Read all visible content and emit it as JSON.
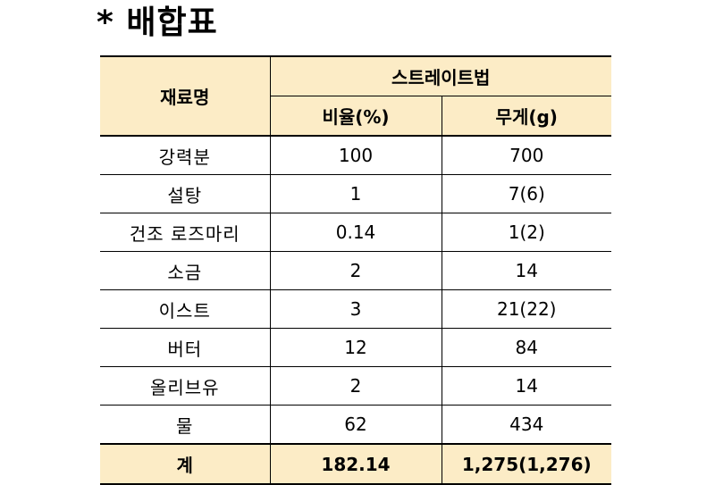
{
  "title": "* 배합표",
  "table": {
    "header": {
      "ingredient": "재료명",
      "method": "스트레이트법",
      "ratio": "비율(%)",
      "weight": "무게(g)"
    },
    "rows": [
      {
        "ingredient": "강력분",
        "ratio": "100",
        "weight": "700"
      },
      {
        "ingredient": "설탕",
        "ratio": "1",
        "weight": "7(6)"
      },
      {
        "ingredient": "건조 로즈마리",
        "ratio": "0.14",
        "weight": "1(2)"
      },
      {
        "ingredient": "소금",
        "ratio": "2",
        "weight": "14"
      },
      {
        "ingredient": "이스트",
        "ratio": "3",
        "weight": "21(22)"
      },
      {
        "ingredient": "버터",
        "ratio": "12",
        "weight": "84"
      },
      {
        "ingredient": "올리브유",
        "ratio": "2",
        "weight": "14"
      },
      {
        "ingredient": "물",
        "ratio": "62",
        "weight": "434"
      }
    ],
    "total": {
      "label": "계",
      "ratio": "182.14",
      "weight": "1,275(1,276)"
    }
  },
  "colors": {
    "header_background": "#fcecc6",
    "border": "#000000"
  }
}
